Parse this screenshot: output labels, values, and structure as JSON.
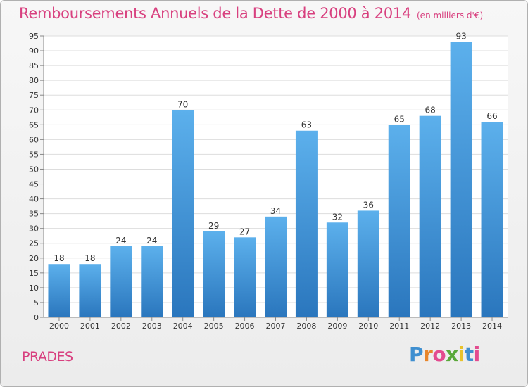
{
  "chart_data": {
    "type": "bar",
    "title": "Remboursements Annuels de la Dette de 2000 à 2014",
    "subtitle": "(en milliers d'€)",
    "categories": [
      "2000",
      "2001",
      "2002",
      "2003",
      "2004",
      "2005",
      "2006",
      "2007",
      "2008",
      "2009",
      "2010",
      "2011",
      "2012",
      "2013",
      "2014"
    ],
    "values": [
      18,
      18,
      24,
      24,
      70,
      29,
      27,
      34,
      63,
      32,
      36,
      65,
      68,
      93,
      66
    ],
    "ylim": [
      0,
      95
    ],
    "yticks": [
      0,
      5,
      10,
      15,
      20,
      25,
      30,
      35,
      40,
      45,
      50,
      55,
      60,
      65,
      70,
      75,
      80,
      85,
      90,
      95
    ],
    "grid": true,
    "bar_color": "#4a9be0",
    "xlabel": "",
    "ylabel": ""
  },
  "footer": {
    "commune": "PRADES",
    "logo": [
      "P",
      "r",
      "o",
      "x",
      "i",
      "t",
      "i"
    ],
    "logo_colors": [
      "#3f8fd0",
      "#e8862b",
      "#e34b8f",
      "#5aa83a",
      "#e8c22b",
      "#3f8fd0",
      "#e34b8f"
    ]
  },
  "accent_color": "#d8407f"
}
